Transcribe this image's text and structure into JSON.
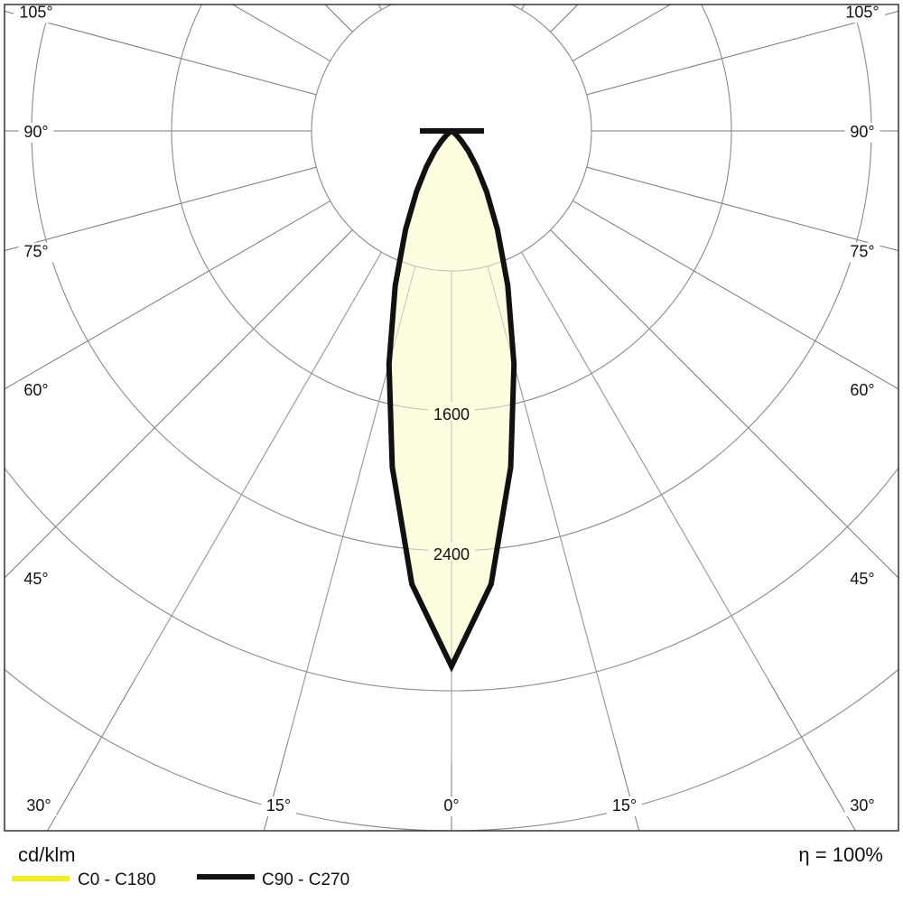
{
  "chart_data": {
    "type": "polar",
    "unit_label": "cd/klm",
    "efficiency_label": "η = 100%",
    "radial_ticks": [
      800,
      1600,
      2400,
      3200,
      4000
    ],
    "radial_tick_labels": [
      "1600",
      "2400"
    ],
    "angle_step_deg": 15,
    "angle_labels": [
      "0°",
      "15°",
      "30°",
      "45°",
      "60°",
      "75°",
      "90°",
      "105°"
    ],
    "angles_deg": [
      0,
      5,
      10,
      15,
      20,
      25,
      30,
      35,
      40,
      45,
      50,
      55,
      60,
      70,
      90
    ],
    "series": [
      {
        "name": "C0 - C180",
        "color": "#f2ee20",
        "values": [
          3060,
          2600,
          1950,
          1380,
          940,
          620,
          400,
          250,
          150,
          80,
          40,
          15,
          5,
          0,
          0
        ]
      },
      {
        "name": "C90 - C270",
        "color": "#111111",
        "values": [
          3060,
          2600,
          1950,
          1380,
          940,
          620,
          400,
          250,
          150,
          80,
          40,
          15,
          5,
          0,
          0
        ]
      }
    ],
    "fill_color": "#fffde0",
    "grid": true
  }
}
